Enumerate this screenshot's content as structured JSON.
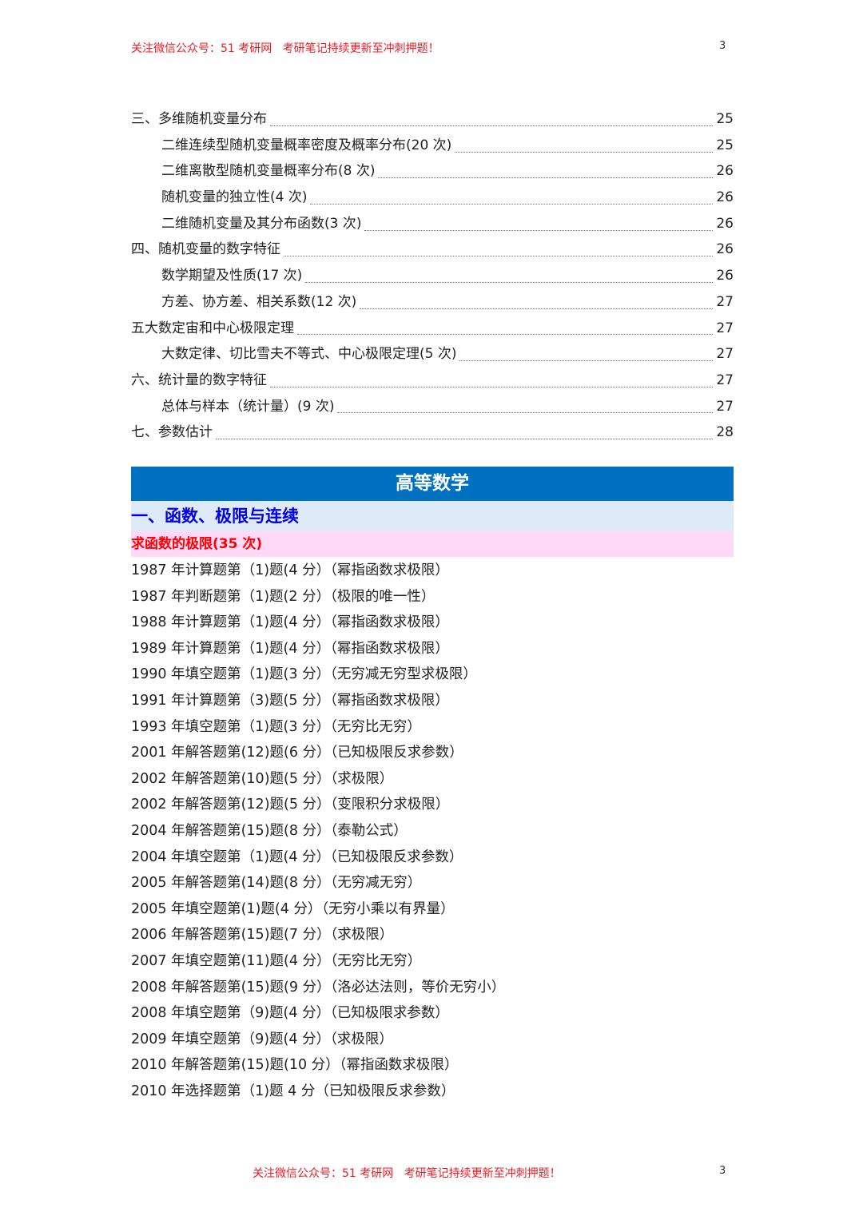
{
  "header": {
    "text": "关注微信公众号：51 考研网   考研笔记持续更新至冲刺押题！",
    "page": "3"
  },
  "toc": [
    {
      "title": "三、多维随机变量分布",
      "page": "25",
      "level": 1
    },
    {
      "title": "二维连续型随机变量概率密度及概率分布(20 次)",
      "page": "25",
      "level": 2
    },
    {
      "title": "二维离散型随机变量概率分布(8 次)",
      "page": "26",
      "level": 2
    },
    {
      "title": "随机变量的独立性(4 次)",
      "page": "26",
      "level": 2
    },
    {
      "title": "二维随机变量及其分布函数(3 次)",
      "page": "26",
      "level": 2
    },
    {
      "title": "四、随机变量的数字特征",
      "page": "26",
      "level": 1
    },
    {
      "title": "数学期望及性质(17 次)",
      "page": "26",
      "level": 2
    },
    {
      "title": "方差、协方差、相关系数(12 次)",
      "page": "27",
      "level": 2
    },
    {
      "title": "五大数定宙和中心极限定理",
      "page": "27",
      "level": 1
    },
    {
      "title": "大数定律、切比雪夫不等式、中心极限定理(5 次)",
      "page": "27",
      "level": 2
    },
    {
      "title": "六、统计量的数字特征",
      "page": "27",
      "level": 1
    },
    {
      "title": "总体与样本（统计量）(9 次)",
      "page": "27",
      "level": 2
    },
    {
      "title": "七、参数估计",
      "page": "28",
      "level": 1
    }
  ],
  "banner": {
    "title": "高等数学",
    "color": "#0070c0"
  },
  "chapter": {
    "title": "一、函数、极限与连续"
  },
  "section": {
    "title": "求函数的极限(35 次)"
  },
  "items": [
    "1987 年计算题第（1)题(4 分）（幂指函数求极限）",
    "1987 年判断题第（1)题(2 分）（极限的唯一性）",
    "1988 年计算题第（1)题(4 分）（幂指函数求极限）",
    "1989 年计算题第（1)题(4 分）（幂指函数求极限）",
    "1990 年填空题第（1)题(3 分）（无穷减无穷型求极限）",
    "1991 年计算题第（3)题(5 分）（幂指函数求极限）",
    "1993 年填空题第（1)题(3 分）（无穷比无穷）",
    "2001 年解答题第(12)题(6 分）（已知极限反求参数）",
    "2002 年解答题第(10)题(5 分）（求极限）",
    "2002 年解答题第(12)题(5 分）（变限积分求极限）",
    "2004 年解答题第(15)题(8 分）（泰勒公式）",
    "2004 年填空题第（1)题(4 分）（已知极限反求参数）",
    "2005 年解答题第(14)题(8 分）（无穷减无穷）",
    "2005 年填空题第(1)题(4 分）（无穷小乘以有界量）",
    "2006 年解答题第(15)题(7 分）（求极限）",
    "2007 年填空题第(11)题(4 分）（无穷比无穷）",
    "2008 年解答题第(15)题(9 分）（洛必达法则，等价无穷小）",
    "2008 年填空题第（9)题(4 分）（已知极限求参数）",
    "2009 年填空题第（9)题(4 分）（求极限）",
    "2010 年解答题第(15)题(10 分）（幂指函数求极限）",
    "2010 年选择题第（1)题 4 分（已知极限反求参数）"
  ],
  "footer": {
    "text": "关注微信公众号：51 考研网   考研笔记持续更新至冲刺押题！",
    "page": "3"
  }
}
